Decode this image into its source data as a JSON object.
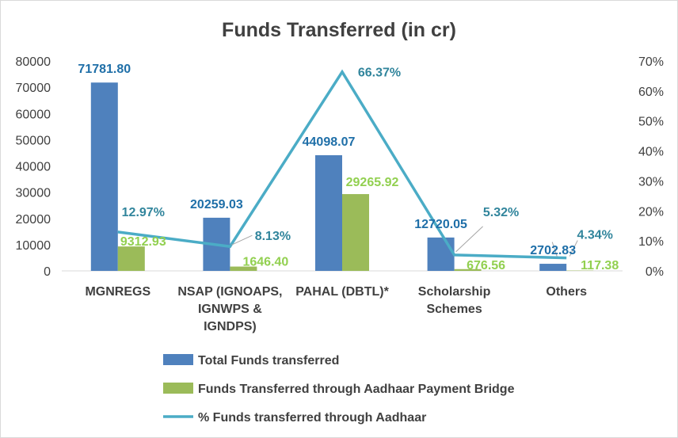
{
  "chart_data": {
    "type": "bar",
    "title": "Funds Transferred (in cr)",
    "categories": [
      [
        "MGNREGS"
      ],
      [
        "NSAP (IGNOAPS,",
        "IGNWPS &",
        "IGNDPS)"
      ],
      [
        "PAHAL (DBTL)*"
      ],
      [
        "Scholarship",
        "Schemes"
      ],
      [
        "Others"
      ]
    ],
    "series": [
      {
        "name": "Total Funds transferred",
        "axis": "left",
        "kind": "bar",
        "color": "#4f81bd",
        "label_color": "#1f6fa8",
        "values": [
          71781.8,
          20259.03,
          44098.07,
          12720.05,
          2702.83
        ],
        "labels": [
          "71781.80",
          "20259.03",
          "44098.07",
          "12720.05",
          "2702.83"
        ]
      },
      {
        "name": "Funds Transferred through Aadhaar Payment Bridge",
        "axis": "left",
        "kind": "bar",
        "color": "#9bbb59",
        "label_color": "#92d050",
        "values": [
          9312.93,
          1646.4,
          29265.92,
          676.56,
          117.38
        ],
        "labels": [
          "9312.93",
          "1646.40",
          "29265.92",
          "676.56",
          "117.38"
        ]
      },
      {
        "name": "% Funds transferred through Aadhaar",
        "axis": "right",
        "kind": "line",
        "color": "#4bacc6",
        "label_color": "#31859c",
        "values": [
          12.97,
          8.13,
          66.37,
          5.32,
          4.34
        ],
        "labels": [
          "12.97%",
          "8.13%",
          "66.37%",
          "5.32%",
          "4.34%"
        ]
      }
    ],
    "y_left": {
      "min": 0,
      "max": 80000,
      "ticks": [
        "0",
        "10000",
        "20000",
        "30000",
        "40000",
        "50000",
        "60000",
        "70000",
        "80000"
      ]
    },
    "y_right": {
      "min": 0,
      "max": 70,
      "ticks": [
        "0%",
        "10%",
        "20%",
        "30%",
        "40%",
        "50%",
        "60%",
        "70%"
      ]
    },
    "grid": false,
    "legend_position": "bottom"
  }
}
